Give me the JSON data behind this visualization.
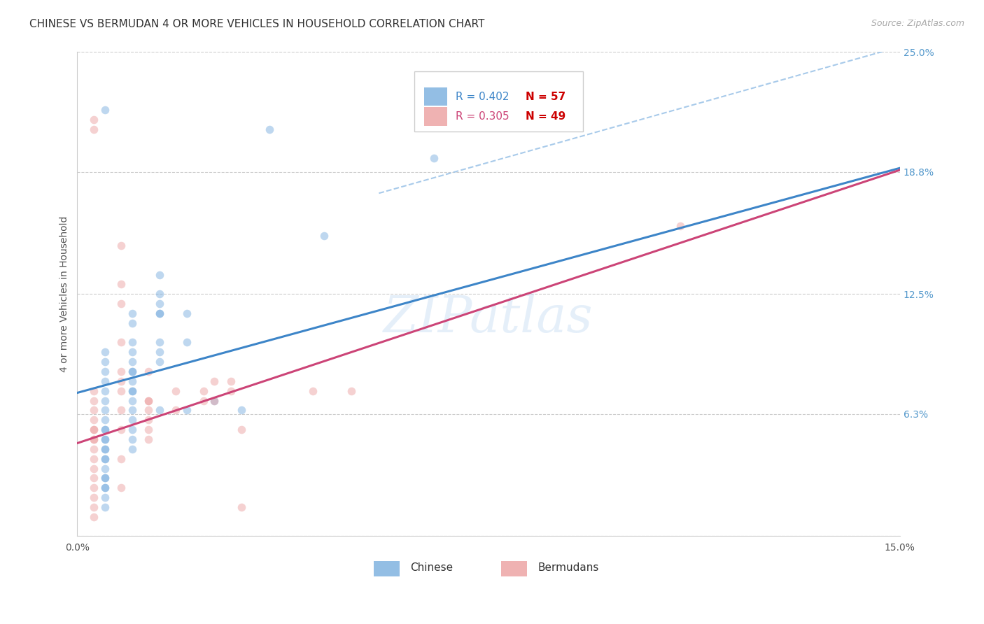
{
  "title": "CHINESE VS BERMUDAN 4 OR MORE VEHICLES IN HOUSEHOLD CORRELATION CHART",
  "source": "Source: ZipAtlas.com",
  "ylabel": "4 or more Vehicles in Household",
  "watermark": "ZIPatlas",
  "xlim": [
    0.0,
    0.15
  ],
  "ylim": [
    0.0,
    0.25
  ],
  "yticks": [
    0.0,
    0.063,
    0.125,
    0.188,
    0.25
  ],
  "yticklabels": [
    "",
    "6.3%",
    "12.5%",
    "18.8%",
    "25.0%"
  ],
  "chinese_color": "#6fa8dc",
  "bermuda_color": "#ea9999",
  "chinese_line_color": "#3d85c8",
  "bermuda_line_color": "#cc4477",
  "dashed_line_color": "#9fc5e8",
  "legend_R_chinese": "R = 0.402",
  "legend_N_chinese": "N = 57",
  "legend_R_bermuda": "R = 0.305",
  "legend_N_bermuda": "N = 49",
  "legend_R_color": "#3d85c8",
  "legend_N_color": "#cc0000",
  "legend_R2_color": "#cc4477",
  "legend_N2_color": "#cc0000",
  "chinese_scatter": [
    [
      0.005,
      0.22
    ],
    [
      0.005,
      0.095
    ],
    [
      0.005,
      0.09
    ],
    [
      0.005,
      0.085
    ],
    [
      0.005,
      0.08
    ],
    [
      0.005,
      0.075
    ],
    [
      0.005,
      0.07
    ],
    [
      0.005,
      0.065
    ],
    [
      0.005,
      0.06
    ],
    [
      0.005,
      0.055
    ],
    [
      0.005,
      0.055
    ],
    [
      0.005,
      0.05
    ],
    [
      0.005,
      0.05
    ],
    [
      0.005,
      0.045
    ],
    [
      0.005,
      0.045
    ],
    [
      0.005,
      0.04
    ],
    [
      0.005,
      0.04
    ],
    [
      0.005,
      0.035
    ],
    [
      0.005,
      0.03
    ],
    [
      0.005,
      0.03
    ],
    [
      0.005,
      0.025
    ],
    [
      0.005,
      0.025
    ],
    [
      0.005,
      0.02
    ],
    [
      0.005,
      0.015
    ],
    [
      0.01,
      0.115
    ],
    [
      0.01,
      0.11
    ],
    [
      0.01,
      0.1
    ],
    [
      0.01,
      0.095
    ],
    [
      0.01,
      0.09
    ],
    [
      0.01,
      0.085
    ],
    [
      0.01,
      0.085
    ],
    [
      0.01,
      0.08
    ],
    [
      0.01,
      0.075
    ],
    [
      0.01,
      0.075
    ],
    [
      0.01,
      0.07
    ],
    [
      0.01,
      0.065
    ],
    [
      0.01,
      0.06
    ],
    [
      0.01,
      0.055
    ],
    [
      0.01,
      0.05
    ],
    [
      0.01,
      0.045
    ],
    [
      0.015,
      0.135
    ],
    [
      0.015,
      0.125
    ],
    [
      0.015,
      0.12
    ],
    [
      0.015,
      0.115
    ],
    [
      0.015,
      0.115
    ],
    [
      0.015,
      0.1
    ],
    [
      0.015,
      0.095
    ],
    [
      0.015,
      0.09
    ],
    [
      0.015,
      0.065
    ],
    [
      0.02,
      0.115
    ],
    [
      0.02,
      0.1
    ],
    [
      0.02,
      0.065
    ],
    [
      0.025,
      0.07
    ],
    [
      0.03,
      0.065
    ],
    [
      0.035,
      0.21
    ],
    [
      0.045,
      0.155
    ],
    [
      0.065,
      0.195
    ]
  ],
  "bermuda_scatter": [
    [
      0.003,
      0.215
    ],
    [
      0.003,
      0.21
    ],
    [
      0.003,
      0.075
    ],
    [
      0.003,
      0.07
    ],
    [
      0.003,
      0.065
    ],
    [
      0.003,
      0.06
    ],
    [
      0.003,
      0.055
    ],
    [
      0.003,
      0.055
    ],
    [
      0.003,
      0.05
    ],
    [
      0.003,
      0.05
    ],
    [
      0.003,
      0.045
    ],
    [
      0.003,
      0.04
    ],
    [
      0.003,
      0.035
    ],
    [
      0.003,
      0.03
    ],
    [
      0.003,
      0.025
    ],
    [
      0.003,
      0.02
    ],
    [
      0.003,
      0.015
    ],
    [
      0.003,
      0.01
    ],
    [
      0.008,
      0.15
    ],
    [
      0.008,
      0.13
    ],
    [
      0.008,
      0.12
    ],
    [
      0.008,
      0.1
    ],
    [
      0.008,
      0.085
    ],
    [
      0.008,
      0.08
    ],
    [
      0.008,
      0.075
    ],
    [
      0.008,
      0.065
    ],
    [
      0.008,
      0.055
    ],
    [
      0.008,
      0.04
    ],
    [
      0.008,
      0.025
    ],
    [
      0.013,
      0.085
    ],
    [
      0.013,
      0.07
    ],
    [
      0.013,
      0.07
    ],
    [
      0.013,
      0.065
    ],
    [
      0.013,
      0.06
    ],
    [
      0.013,
      0.055
    ],
    [
      0.013,
      0.05
    ],
    [
      0.018,
      0.075
    ],
    [
      0.018,
      0.065
    ],
    [
      0.023,
      0.075
    ],
    [
      0.023,
      0.07
    ],
    [
      0.025,
      0.08
    ],
    [
      0.025,
      0.07
    ],
    [
      0.028,
      0.08
    ],
    [
      0.028,
      0.075
    ],
    [
      0.03,
      0.055
    ],
    [
      0.03,
      0.015
    ],
    [
      0.043,
      0.075
    ],
    [
      0.05,
      0.075
    ],
    [
      0.11,
      0.16
    ]
  ],
  "chinese_trend_x": [
    0.0,
    0.15
  ],
  "chinese_trend_y": [
    0.074,
    0.19
  ],
  "bermuda_trend_x": [
    0.0,
    0.15
  ],
  "bermuda_trend_y": [
    0.048,
    0.189
  ],
  "dashed_trend_x": [
    0.055,
    0.153
  ],
  "dashed_trend_y": [
    0.177,
    0.255
  ],
  "grid_color": "#cccccc",
  "background_color": "#ffffff",
  "title_fontsize": 11,
  "axis_tick_fontsize": 10,
  "scatter_size": 70,
  "scatter_alpha": 0.45,
  "line_width": 2.2
}
